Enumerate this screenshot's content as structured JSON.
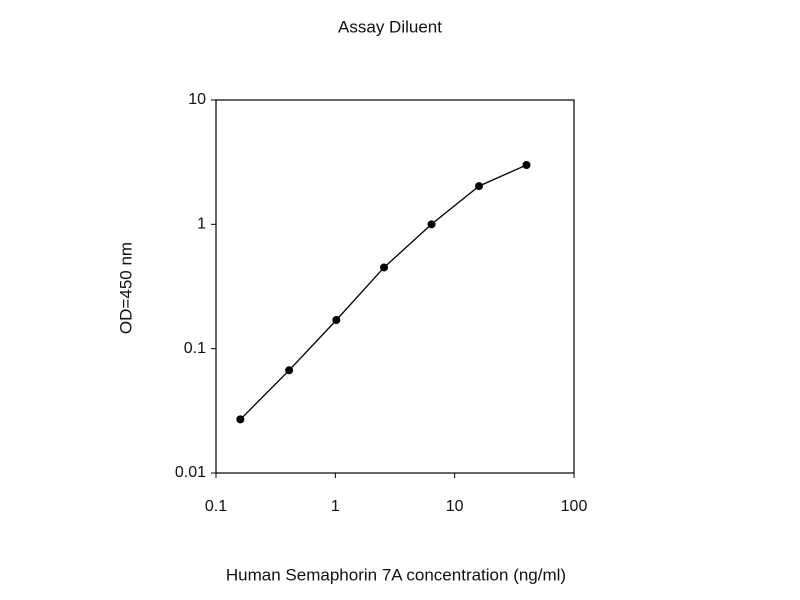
{
  "chart_data": {
    "type": "line",
    "title": "Assay Diluent",
    "x_label": "Human Semaphorin 7A concentration (ng/ml)",
    "y_label": "OD=450 nm",
    "x": [
      0.16,
      0.41,
      1.02,
      2.56,
      6.4,
      16,
      40
    ],
    "values": [
      0.027,
      0.067,
      0.17,
      0.45,
      1.0,
      2.03,
      3.0
    ],
    "color": "#000000",
    "x_log": true,
    "y_log": true,
    "xlim": [
      0.1,
      100
    ],
    "ylim": [
      0.01,
      10
    ],
    "xticks": [
      0.1,
      1,
      10,
      100
    ],
    "yticks": [
      0.01,
      0.1,
      1,
      10
    ]
  }
}
